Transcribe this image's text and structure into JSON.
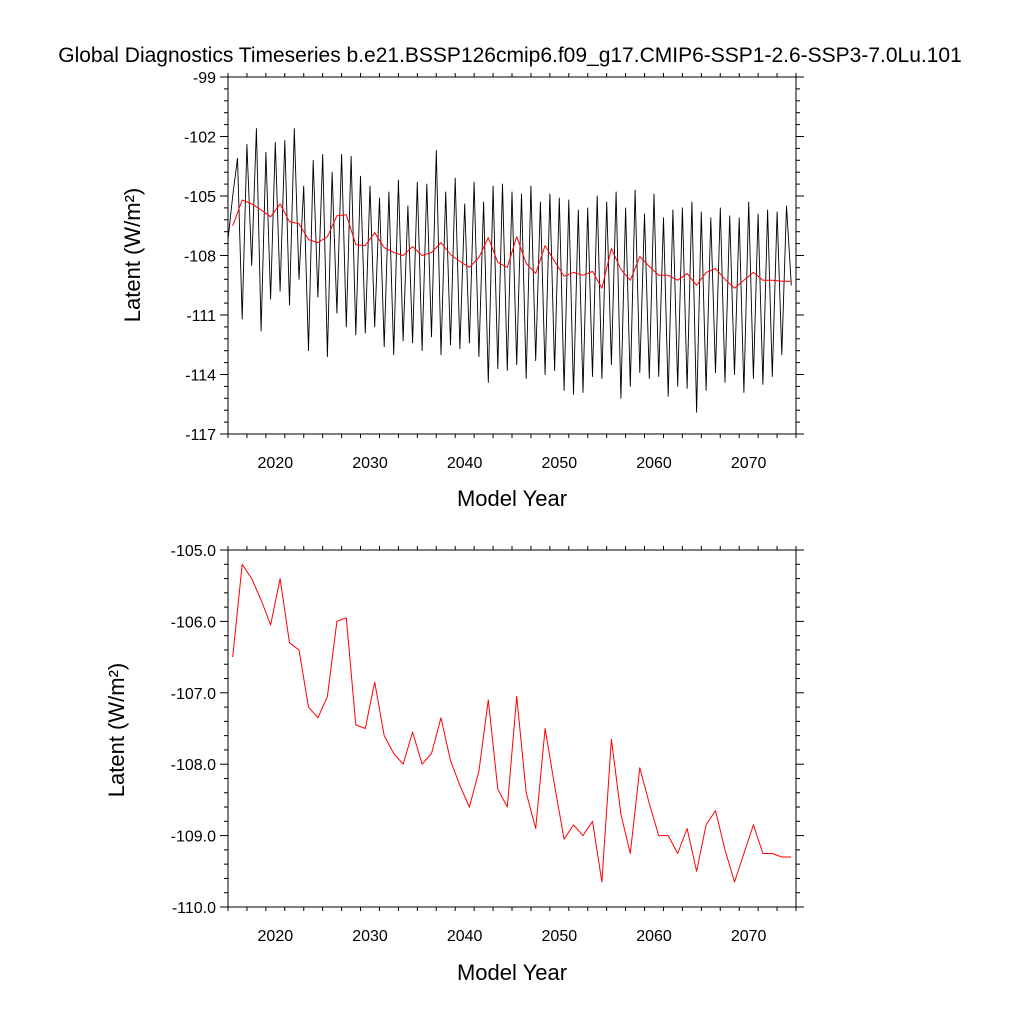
{
  "title": "Global Diagnostics Timeseries b.e21.BSSP126cmip6.f09_g17.CMIP6-SSP1-2.6-SSP3-7.0Lu.101",
  "colors": {
    "monthly": "#000000",
    "annual": "#ff0000"
  },
  "chart_data": [
    {
      "type": "line",
      "xlabel": "Model Year",
      "ylabel": "Latent (W/m²)",
      "xlim": [
        2015,
        2075
      ],
      "ylim": [
        -117,
        -99
      ],
      "xticks": [
        2020,
        2030,
        2040,
        2050,
        2060,
        2070
      ],
      "yticks": [
        -117,
        -114,
        -111,
        -108,
        -105,
        -102,
        -99
      ],
      "yticklabels": [
        "-117",
        "-114",
        "-111",
        "-108",
        "-105",
        "-102",
        "-99"
      ],
      "grid": false,
      "series": [
        {
          "color": "#000000",
          "note_resolution": "monthly",
          "x": [
            2015.0,
            2015.5,
            2016.0,
            2016.5,
            2017.0,
            2017.5,
            2018.0,
            2018.5,
            2019.0,
            2019.5,
            2020.0,
            2020.5,
            2021.0,
            2021.5,
            2022.0,
            2022.5,
            2023.0,
            2023.5,
            2024.0,
            2024.5,
            2025.0,
            2025.5,
            2026.0,
            2026.5,
            2027.0,
            2027.5,
            2028.0,
            2028.5,
            2029.0,
            2029.5,
            2030.0,
            2030.5,
            2031.0,
            2031.5,
            2032.0,
            2032.5,
            2033.0,
            2033.5,
            2034.0,
            2034.5,
            2035.0,
            2035.5,
            2036.0,
            2036.5,
            2037.0,
            2037.5,
            2038.0,
            2038.5,
            2039.0,
            2039.5,
            2040.0,
            2040.5,
            2041.0,
            2041.5,
            2042.0,
            2042.5,
            2043.0,
            2043.5,
            2044.0,
            2044.5,
            2045.0,
            2045.5,
            2046.0,
            2046.5,
            2047.0,
            2047.5,
            2048.0,
            2048.5,
            2049.0,
            2049.5,
            2050.0,
            2050.5,
            2051.0,
            2051.5,
            2052.0,
            2052.5,
            2053.0,
            2053.5,
            2054.0,
            2054.5,
            2055.0,
            2055.5,
            2056.0,
            2056.5,
            2057.0,
            2057.5,
            2058.0,
            2058.5,
            2059.0,
            2059.5,
            2060.0,
            2060.5,
            2061.0,
            2061.5,
            2062.0,
            2062.5,
            2063.0,
            2063.5,
            2064.0,
            2064.5,
            2065.0,
            2065.5,
            2066.0,
            2066.5,
            2067.0,
            2067.5,
            2068.0,
            2068.5,
            2069.0,
            2069.5,
            2070.0,
            2070.5,
            2071.0,
            2071.5,
            2072.0,
            2072.5,
            2073.0,
            2073.5,
            2074.0,
            2074.5
          ],
          "y": [
            -107.2,
            -105.0,
            -103.1,
            -111.2,
            -102.4,
            -108.5,
            -101.6,
            -111.8,
            -102.8,
            -110.2,
            -102.3,
            -109.8,
            -102.2,
            -110.5,
            -101.6,
            -109.2,
            -104.5,
            -112.8,
            -103.2,
            -110.1,
            -102.9,
            -113.1,
            -103.8,
            -110.9,
            -102.9,
            -111.6,
            -103.0,
            -112.0,
            -104.0,
            -111.9,
            -104.5,
            -111.6,
            -105.1,
            -112.6,
            -104.8,
            -113.0,
            -104.2,
            -112.3,
            -105.5,
            -112.4,
            -104.3,
            -112.8,
            -104.4,
            -112.1,
            -102.7,
            -113.0,
            -104.8,
            -112.5,
            -104.1,
            -112.7,
            -105.4,
            -112.4,
            -104.3,
            -113.1,
            -105.3,
            -114.4,
            -104.5,
            -113.7,
            -104.4,
            -113.8,
            -104.8,
            -113.5,
            -104.9,
            -114.2,
            -104.5,
            -113.3,
            -105.3,
            -114.0,
            -104.9,
            -113.8,
            -105.1,
            -114.8,
            -105.2,
            -115.0,
            -105.7,
            -114.9,
            -105.6,
            -114.1,
            -105.0,
            -114.2,
            -105.3,
            -113.5,
            -104.8,
            -115.2,
            -105.6,
            -114.6,
            -104.7,
            -113.9,
            -105.9,
            -114.2,
            -104.9,
            -114.1,
            -106.1,
            -115.1,
            -105.7,
            -114.6,
            -105.6,
            -114.7,
            -105.3,
            -115.9,
            -105.8,
            -114.8,
            -106.1,
            -113.9,
            -105.6,
            -114.4,
            -106.0,
            -114.0,
            -106.1,
            -114.9,
            -105.3,
            -114.2,
            -105.9,
            -114.5,
            -105.7,
            -114.1,
            -105.8,
            -113.0,
            -105.5,
            -109.5
          ],
          "values_note": "approximate oscillation envelope read from the plot"
        },
        {
          "color": "#ff0000",
          "x": [
            2015.5,
            2016.5,
            2017.5,
            2018.5,
            2019.5,
            2020.5,
            2021.5,
            2022.5,
            2023.5,
            2024.5,
            2025.5,
            2026.5,
            2027.5,
            2028.5,
            2029.5,
            2030.5,
            2031.5,
            2032.5,
            2033.5,
            2034.5,
            2035.5,
            2036.5,
            2037.5,
            2038.5,
            2039.5,
            2040.5,
            2041.5,
            2042.5,
            2043.5,
            2044.5,
            2045.5,
            2046.5,
            2047.5,
            2048.5,
            2049.5,
            2050.5,
            2051.5,
            2052.5,
            2053.5,
            2054.5,
            2055.5,
            2056.5,
            2057.5,
            2058.5,
            2059.5,
            2060.5,
            2061.5,
            2062.5,
            2063.5,
            2064.5,
            2065.5,
            2066.5,
            2067.5,
            2068.5,
            2069.5,
            2070.5,
            2071.5,
            2072.5,
            2073.5,
            2074.5
          ],
          "y": [
            -106.5,
            -105.2,
            -105.4,
            -105.7,
            -106.05,
            -105.4,
            -106.3,
            -106.4,
            -107.2,
            -107.35,
            -107.05,
            -106.0,
            -105.95,
            -107.45,
            -107.5,
            -106.85,
            -107.6,
            -107.85,
            -108.0,
            -107.55,
            -108.0,
            -107.85,
            -107.35,
            -107.95,
            -108.3,
            -108.6,
            -108.1,
            -107.1,
            -108.35,
            -108.6,
            -107.05,
            -108.4,
            -108.9,
            -107.5,
            -108.3,
            -109.05,
            -108.85,
            -109.0,
            -108.8,
            -109.65,
            -107.65,
            -108.7,
            -109.25,
            -108.05,
            -108.55,
            -109.0,
            -109.0,
            -109.25,
            -108.9,
            -109.5,
            -108.85,
            -108.65,
            -109.2,
            -109.65,
            -109.25,
            -108.85,
            -109.25,
            -109.25,
            -109.3,
            -109.3
          ]
        }
      ]
    },
    {
      "type": "line",
      "xlabel": "Model Year",
      "ylabel": "Latent (W/m²)",
      "xlim": [
        2015,
        2075
      ],
      "ylim": [
        -110,
        -105
      ],
      "xticks": [
        2020,
        2030,
        2040,
        2050,
        2060,
        2070
      ],
      "yticks": [
        -110,
        -109,
        -108,
        -107,
        -106,
        -105
      ],
      "yticklabels": [
        "-110.0",
        "-109.0",
        "-108.0",
        "-107.0",
        "-106.0",
        "-105.0"
      ],
      "grid": false,
      "series": [
        {
          "color": "#ff0000",
          "x": [
            2015.5,
            2016.5,
            2017.5,
            2018.5,
            2019.5,
            2020.5,
            2021.5,
            2022.5,
            2023.5,
            2024.5,
            2025.5,
            2026.5,
            2027.5,
            2028.5,
            2029.5,
            2030.5,
            2031.5,
            2032.5,
            2033.5,
            2034.5,
            2035.5,
            2036.5,
            2037.5,
            2038.5,
            2039.5,
            2040.5,
            2041.5,
            2042.5,
            2043.5,
            2044.5,
            2045.5,
            2046.5,
            2047.5,
            2048.5,
            2049.5,
            2050.5,
            2051.5,
            2052.5,
            2053.5,
            2054.5,
            2055.5,
            2056.5,
            2057.5,
            2058.5,
            2059.5,
            2060.5,
            2061.5,
            2062.5,
            2063.5,
            2064.5,
            2065.5,
            2066.5,
            2067.5,
            2068.5,
            2069.5,
            2070.5,
            2071.5,
            2072.5,
            2073.5,
            2074.5
          ],
          "y": [
            -106.5,
            -105.2,
            -105.4,
            -105.7,
            -106.05,
            -105.4,
            -106.3,
            -106.4,
            -107.2,
            -107.35,
            -107.05,
            -106.0,
            -105.95,
            -107.45,
            -107.5,
            -106.85,
            -107.6,
            -107.85,
            -108.0,
            -107.55,
            -108.0,
            -107.85,
            -107.35,
            -107.95,
            -108.3,
            -108.6,
            -108.1,
            -107.1,
            -108.35,
            -108.6,
            -107.05,
            -108.4,
            -108.9,
            -107.5,
            -108.3,
            -109.05,
            -108.85,
            -109.0,
            -108.8,
            -109.65,
            -107.65,
            -108.7,
            -109.25,
            -108.05,
            -108.55,
            -109.0,
            -109.0,
            -109.25,
            -108.9,
            -109.5,
            -108.85,
            -108.65,
            -109.2,
            -109.65,
            -109.25,
            -108.85,
            -109.25,
            -109.25,
            -109.3,
            -109.3
          ]
        }
      ]
    }
  ]
}
